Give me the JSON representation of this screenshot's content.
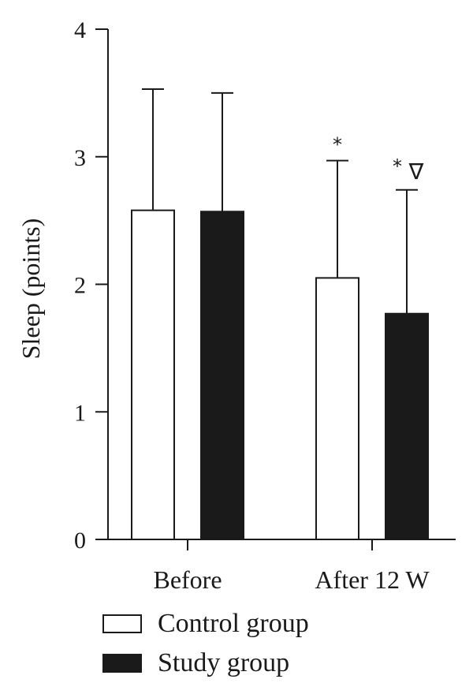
{
  "chart_data": {
    "type": "bar",
    "title": "",
    "xlabel": "",
    "ylabel": "Sleep (points)",
    "ylim": [
      0,
      4
    ],
    "yticks": [
      0,
      1,
      2,
      3,
      4
    ],
    "categories": [
      "Before",
      "After 12 W"
    ],
    "series": [
      {
        "name": "Control group",
        "color": "#ffffff",
        "values": [
          2.58,
          2.05
        ],
        "error": [
          0.95,
          0.92
        ],
        "annotations": [
          "",
          "*"
        ]
      },
      {
        "name": "Study group",
        "color": "#1a1a1a",
        "values": [
          2.57,
          1.77
        ],
        "error": [
          0.93,
          0.97
        ],
        "annotations": [
          "",
          "*∇"
        ]
      }
    ],
    "legend_position": "bottom-left",
    "grid": false
  }
}
